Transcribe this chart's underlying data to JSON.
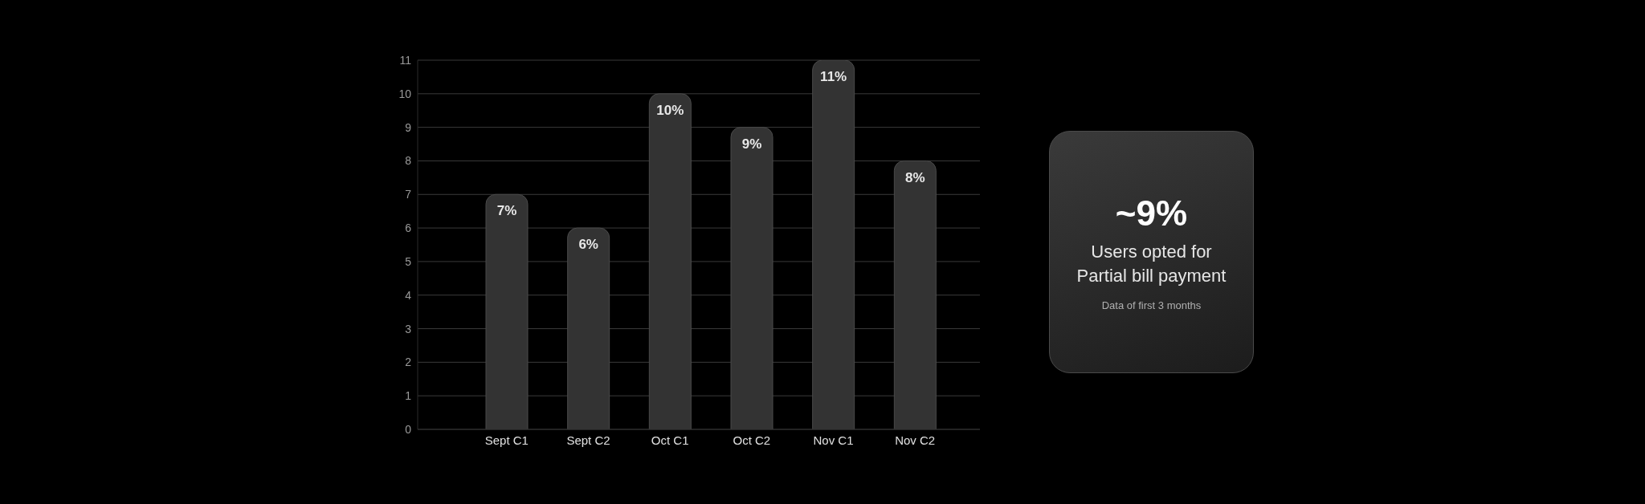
{
  "chart_data": [
    {
      "type": "bar",
      "categories": [
        "Sept C1",
        "Sept C2",
        "Oct C1",
        "Oct C2",
        "Nov C1",
        "Nov C2"
      ],
      "values": [
        7,
        6,
        10,
        9,
        11,
        8
      ],
      "color": "#333333",
      "value_labels": [
        "7%",
        "6%",
        "10%",
        "9%",
        "11%",
        "8%"
      ],
      "ylim": [
        0,
        11
      ],
      "yticks": [
        0,
        1,
        2,
        3,
        4,
        5,
        6,
        7,
        8,
        9,
        10,
        11
      ],
      "grid": "y"
    },
    {
      "type": "other",
      "title": "~9%",
      "subtitle": "Users opted for Partial bill payment",
      "annotations": [
        "Data of first 3 months"
      ]
    }
  ]
}
